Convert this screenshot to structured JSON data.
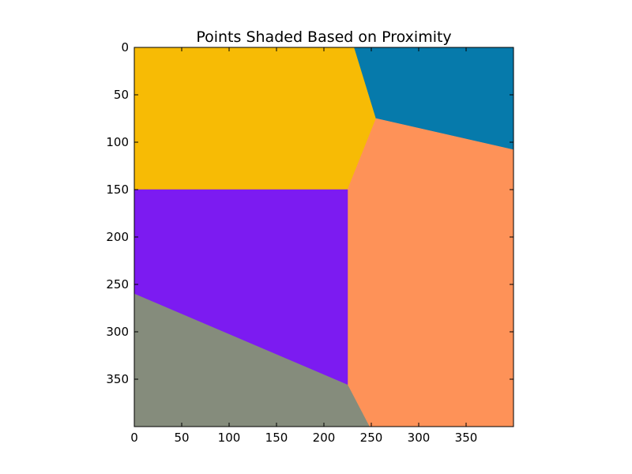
{
  "chart_data": {
    "type": "heatmap",
    "title": "Points Shaded Based on Proximity",
    "xlabel": "",
    "ylabel": "",
    "xlim": [
      0,
      400
    ],
    "ylim": [
      400,
      0
    ],
    "y_axis_inverted": true,
    "grid": false,
    "legend": "none",
    "x_ticks": [
      0,
      50,
      100,
      150,
      200,
      250,
      300,
      350
    ],
    "y_ticks": [
      0,
      50,
      100,
      150,
      200,
      250,
      300,
      350
    ],
    "regions": [
      {
        "id": "region-yellow",
        "color": "#f7bb05",
        "polygon": [
          [
            0,
            0
          ],
          [
            232,
            0
          ],
          [
            255,
            75
          ],
          [
            225,
            150
          ],
          [
            0,
            150
          ]
        ]
      },
      {
        "id": "region-blue",
        "color": "#067aab",
        "polygon": [
          [
            232,
            0
          ],
          [
            400,
            0
          ],
          [
            400,
            108
          ],
          [
            255,
            75
          ]
        ]
      },
      {
        "id": "region-orange",
        "color": "#fe9258",
        "polygon": [
          [
            255,
            75
          ],
          [
            400,
            108
          ],
          [
            400,
            400
          ],
          [
            248,
            400
          ],
          [
            225,
            356
          ],
          [
            225,
            150
          ]
        ]
      },
      {
        "id": "region-purple",
        "color": "#7c1bf1",
        "polygon": [
          [
            0,
            150
          ],
          [
            225,
            150
          ],
          [
            225,
            356
          ],
          [
            0,
            260
          ]
        ]
      },
      {
        "id": "region-gray",
        "color": "#858c7c",
        "polygon": [
          [
            0,
            260
          ],
          [
            225,
            356
          ],
          [
            248,
            400
          ],
          [
            0,
            400
          ]
        ]
      }
    ]
  }
}
